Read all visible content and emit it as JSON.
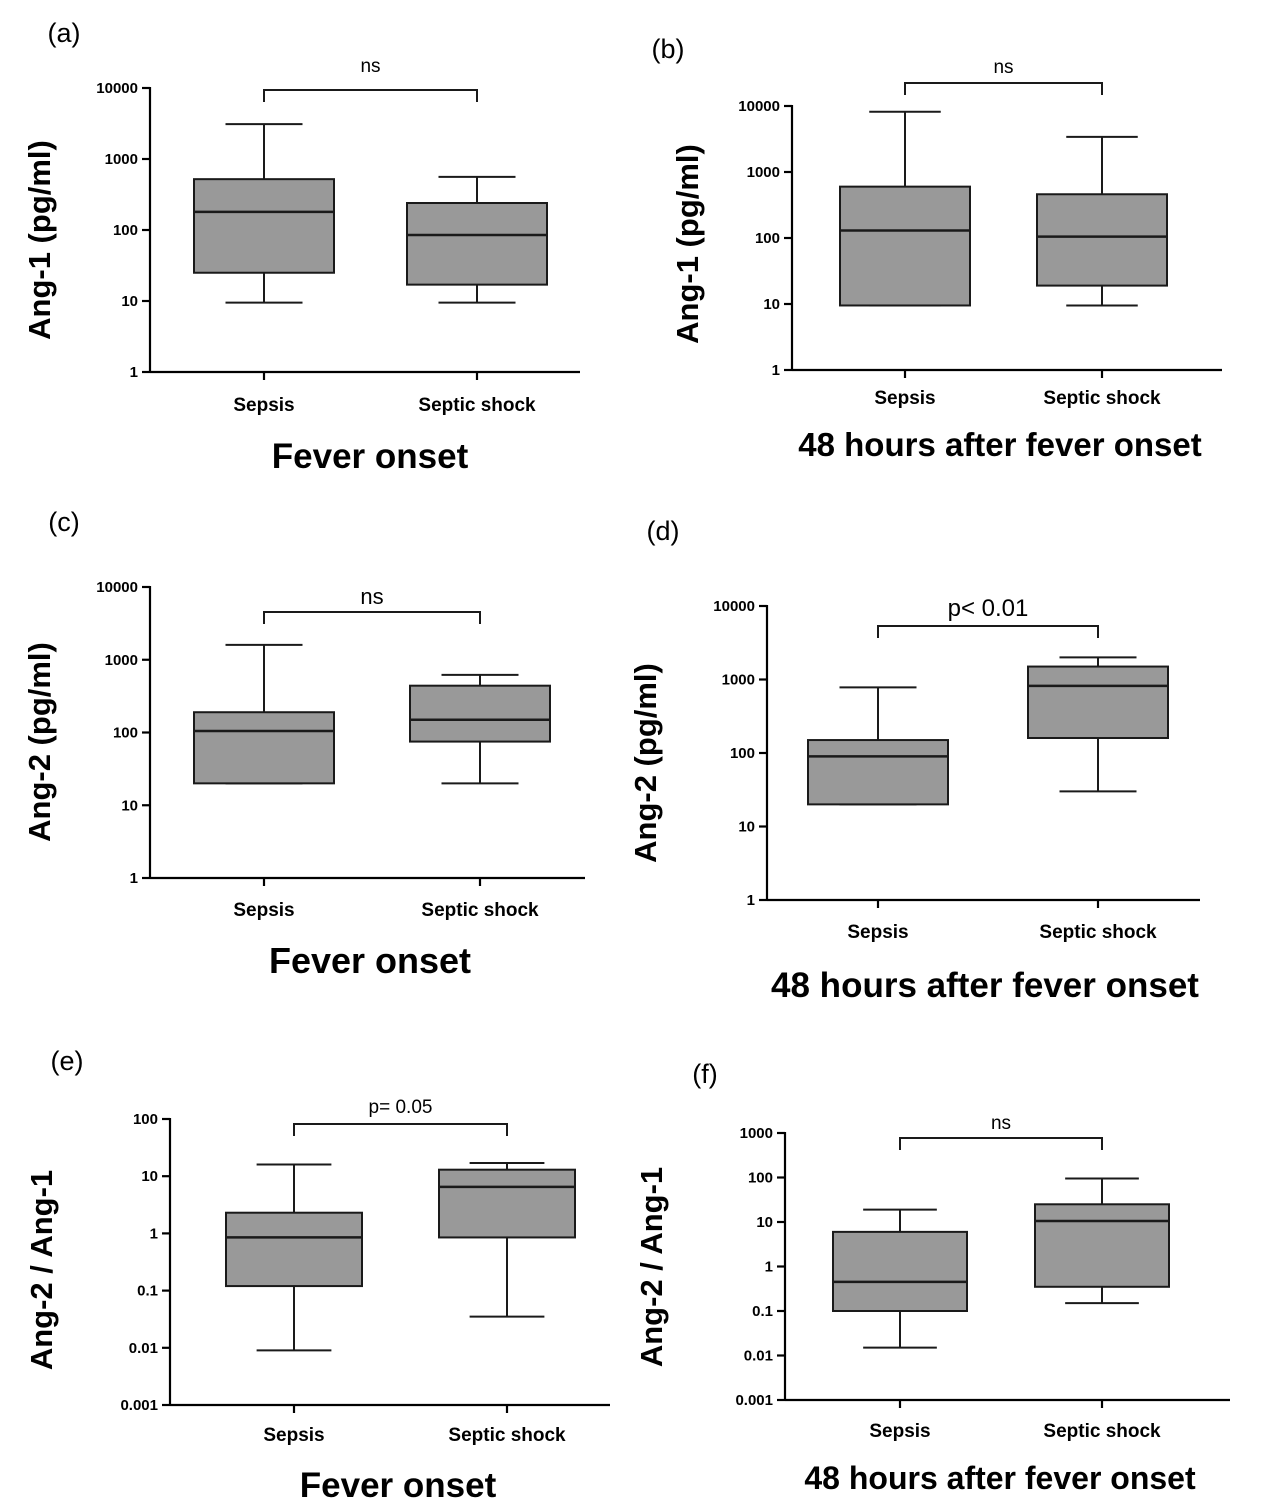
{
  "chart_data": [
    {
      "panel": "(a)",
      "type": "box",
      "ylabel": "Ang-1 (pg/ml)",
      "xlabel": "Fever onset",
      "y_scale": "log",
      "ylim": [
        1,
        10000
      ],
      "y_ticks": [
        "1",
        "10",
        "100",
        "1000",
        "10000"
      ],
      "categories": [
        "Sepsis",
        "Septic shock"
      ],
      "boxes": [
        {
          "min": 9.5,
          "q1": 25,
          "median": 180,
          "q3": 520,
          "max": 3100
        },
        {
          "min": 9.5,
          "q1": 17,
          "median": 85,
          "q3": 240,
          "max": 560
        }
      ],
      "annotation": "ns"
    },
    {
      "panel": "(b)",
      "type": "box",
      "ylabel": "Ang-1 (pg/ml)",
      "xlabel": "48 hours after fever onset",
      "y_scale": "log",
      "ylim": [
        1,
        10000
      ],
      "y_ticks": [
        "1",
        "10",
        "100",
        "1000",
        "10000"
      ],
      "categories": [
        "Sepsis",
        "Septic shock"
      ],
      "boxes": [
        {
          "min": 9.5,
          "q1": 9.5,
          "median": 130,
          "q3": 600,
          "max": 8200
        },
        {
          "min": 9.5,
          "q1": 19,
          "median": 105,
          "q3": 460,
          "max": 3400
        }
      ],
      "annotation": "ns"
    },
    {
      "panel": "(c)",
      "type": "box",
      "ylabel": "Ang-2 (pg/ml)",
      "xlabel": "Fever onset",
      "y_scale": "log",
      "ylim": [
        1,
        10000
      ],
      "y_ticks": [
        "1",
        "10",
        "100",
        "1000",
        "10000"
      ],
      "categories": [
        "Sepsis",
        "Septic shock"
      ],
      "boxes": [
        {
          "min": 20,
          "q1": 20,
          "median": 105,
          "q3": 190,
          "max": 1600
        },
        {
          "min": 20,
          "q1": 75,
          "median": 150,
          "q3": 440,
          "max": 620
        }
      ],
      "annotation": "ns"
    },
    {
      "panel": "(d)",
      "type": "box",
      "ylabel": "Ang-2 (pg/ml)",
      "xlabel": "48 hours after fever onset",
      "y_scale": "log",
      "ylim": [
        1,
        10000
      ],
      "y_ticks": [
        "1",
        "10",
        "100",
        "1000",
        "10000"
      ],
      "categories": [
        "Sepsis",
        "Septic shock"
      ],
      "boxes": [
        {
          "min": 20,
          "q1": 20,
          "median": 90,
          "q3": 150,
          "max": 780
        },
        {
          "min": 30,
          "q1": 160,
          "median": 820,
          "q3": 1500,
          "max": 2000
        }
      ],
      "annotation": "p< 0.01"
    },
    {
      "panel": "(e)",
      "type": "box",
      "ylabel": "Ang-2 / Ang-1",
      "xlabel": "Fever onset",
      "y_scale": "log",
      "ylim": [
        0.001,
        100
      ],
      "y_ticks": [
        "0.001",
        "0.01",
        "0.1",
        "1",
        "10",
        "100"
      ],
      "categories": [
        "Sepsis",
        "Septic shock"
      ],
      "boxes": [
        {
          "min": 0.009,
          "q1": 0.12,
          "median": 0.85,
          "q3": 2.3,
          "max": 16
        },
        {
          "min": 0.035,
          "q1": 0.85,
          "median": 6.5,
          "q3": 13,
          "max": 17
        }
      ],
      "annotation": "p= 0.05"
    },
    {
      "panel": "(f)",
      "type": "box",
      "ylabel": "Ang-2 / Ang-1",
      "xlabel": "48 hours after fever onset",
      "y_scale": "log",
      "ylim": [
        0.001,
        1000
      ],
      "y_ticks": [
        "0.001",
        "0.01",
        "0.1",
        "1",
        "10",
        "100",
        "1000"
      ],
      "categories": [
        "Sepsis",
        "Septic shock"
      ],
      "boxes": [
        {
          "min": 0.015,
          "q1": 0.1,
          "median": 0.45,
          "q3": 6,
          "max": 19
        },
        {
          "min": 0.15,
          "q1": 0.35,
          "median": 10.5,
          "q3": 25,
          "max": 95
        }
      ],
      "annotation": "ns"
    }
  ]
}
